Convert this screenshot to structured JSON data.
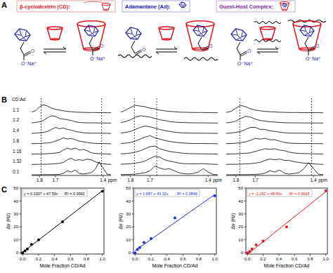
{
  "panels": [
    "A",
    "B",
    "C"
  ],
  "schematic": {
    "legend": [
      {
        "label": "β-cyclodextrin (CD):",
        "color": "#e3141c"
      },
      {
        "label": "Adamantane (Ad):",
        "color": "#1c1ca8"
      },
      {
        "label": "Guest-Host Complex:",
        "color": "#7a2a9a"
      }
    ],
    "carbonyl": "O",
    "counterion": "O⁻Na⁺"
  },
  "chart_data": [
    {
      "type": "line",
      "legend_title": "CD:Ad",
      "x": [
        1.85,
        1.825,
        1.8,
        1.775,
        1.75,
        1.725,
        1.7,
        1.675,
        1.65,
        1.625,
        1.6,
        1.575,
        1.55,
        1.525,
        1.5,
        1.475,
        1.45,
        1.425,
        1.4,
        1.375,
        1.35
      ],
      "xlim": [
        1.85,
        1.35
      ],
      "xticks": [
        1.8,
        1.7,
        1.4
      ],
      "x_label": "ppm",
      "ylim": [
        0,
        1
      ],
      "tick_labels": "x",
      "line_style": "solid",
      "reference_lines": [
        1.79,
        1.41
      ],
      "series": [
        {
          "name": "1:1",
          "color": "#000000",
          "values": [
            0.05,
            0.15,
            0.45,
            0.6,
            0.5,
            0.35,
            0.25,
            0.2,
            0.15,
            0.1,
            0.08,
            0.05,
            0.04,
            0.03,
            0.02,
            0.02,
            0.02,
            0.01,
            0.01,
            0.01,
            0
          ]
        },
        {
          "name": "1:2",
          "color": "#000000",
          "values": [
            0.02,
            0.05,
            0.1,
            0.2,
            0.4,
            0.55,
            0.5,
            0.35,
            0.3,
            0.25,
            0.2,
            0.1,
            0.05,
            0.03,
            0.02,
            0.02,
            0.02,
            0.01,
            0.01,
            0.01,
            0
          ]
        },
        {
          "name": "1:4",
          "color": "#000000",
          "values": [
            0.01,
            0.02,
            0.05,
            0.08,
            0.15,
            0.3,
            0.45,
            0.35,
            0.4,
            0.3,
            0.25,
            0.15,
            0.1,
            0.05,
            0.03,
            0.02,
            0.02,
            0.02,
            0.01,
            0.01,
            0
          ]
        },
        {
          "name": "1:8",
          "color": "#000000",
          "values": [
            0.01,
            0.01,
            0.02,
            0.04,
            0.06,
            0.1,
            0.2,
            0.3,
            0.45,
            0.35,
            0.4,
            0.3,
            0.2,
            0.15,
            0.1,
            0.05,
            0.03,
            0.02,
            0.02,
            0.01,
            0
          ]
        },
        {
          "name": "1:16",
          "color": "#000000",
          "values": [
            0,
            0.01,
            0.01,
            0.02,
            0.03,
            0.05,
            0.08,
            0.12,
            0.3,
            0.45,
            0.35,
            0.45,
            0.3,
            0.35,
            0.25,
            0.1,
            0.05,
            0.03,
            0.02,
            0.01,
            0
          ]
        },
        {
          "name": "1:32",
          "color": "#000000",
          "values": [
            0,
            0,
            0.01,
            0.01,
            0.02,
            0.03,
            0.05,
            0.08,
            0.15,
            0.35,
            0.45,
            0.3,
            0.35,
            0.3,
            0.4,
            0.35,
            0.2,
            0.1,
            0.05,
            0.02,
            0
          ]
        },
        {
          "name": "0:1",
          "color": "#000000",
          "values": [
            0,
            0,
            0,
            0.01,
            0.01,
            0.01,
            0.02,
            0.03,
            0.1,
            0.3,
            0.2,
            0.35,
            0.1,
            0.05,
            0.1,
            0.15,
            0.4,
            0.95,
            0.5,
            0.05,
            0
          ]
        }
      ]
    },
    {
      "type": "line",
      "x": [
        1.85,
        1.825,
        1.8,
        1.775,
        1.75,
        1.725,
        1.7,
        1.675,
        1.65,
        1.625,
        1.6,
        1.575,
        1.55,
        1.525,
        1.5,
        1.475,
        1.45,
        1.425,
        1.4,
        1.375,
        1.35
      ],
      "xlim": [
        1.85,
        1.35
      ],
      "xticks": [
        1.8,
        1.7,
        1.4
      ],
      "x_label": "ppm",
      "ylim": [
        0,
        1
      ],
      "tick_labels": "x",
      "line_style": "solid",
      "reference_lines": [
        1.78,
        1.665
      ],
      "series": [
        {
          "color": "#000000",
          "values": [
            0.05,
            0.2,
            0.4,
            0.55,
            0.5,
            0.45,
            0.35,
            0.3,
            0.2,
            0.15,
            0.1,
            0.08,
            0.05,
            0.04,
            0.03,
            0.02,
            0.02,
            0.02,
            0.01,
            0.01,
            0
          ]
        },
        {
          "color": "#000000",
          "values": [
            0.04,
            0.12,
            0.25,
            0.45,
            0.55,
            0.5,
            0.45,
            0.35,
            0.25,
            0.2,
            0.12,
            0.08,
            0.05,
            0.04,
            0.03,
            0.02,
            0.02,
            0.02,
            0.01,
            0.01,
            0
          ]
        },
        {
          "color": "#000000",
          "values": [
            0.03,
            0.08,
            0.15,
            0.3,
            0.45,
            0.55,
            0.5,
            0.4,
            0.3,
            0.22,
            0.15,
            0.1,
            0.06,
            0.04,
            0.03,
            0.02,
            0.02,
            0.02,
            0.01,
            0.01,
            0
          ]
        },
        {
          "color": "#000000",
          "values": [
            0.02,
            0.05,
            0.1,
            0.2,
            0.35,
            0.5,
            0.6,
            0.45,
            0.35,
            0.25,
            0.18,
            0.12,
            0.08,
            0.05,
            0.03,
            0.02,
            0.02,
            0.02,
            0.01,
            0.01,
            0
          ]
        },
        {
          "color": "#000000",
          "values": [
            0.02,
            0.04,
            0.08,
            0.15,
            0.25,
            0.4,
            0.55,
            0.6,
            0.4,
            0.3,
            0.2,
            0.15,
            0.1,
            0.06,
            0.04,
            0.03,
            0.02,
            0.02,
            0.01,
            0.01,
            0
          ]
        },
        {
          "color": "#000000",
          "values": [
            0.01,
            0.03,
            0.05,
            0.1,
            0.15,
            0.25,
            0.45,
            0.6,
            0.55,
            0.35,
            0.25,
            0.18,
            0.1,
            0.06,
            0.05,
            0.04,
            0.05,
            0.06,
            0.03,
            0.01,
            0
          ]
        },
        {
          "color": "#000000",
          "values": [
            0.01,
            0.02,
            0.03,
            0.05,
            0.1,
            0.15,
            0.3,
            0.65,
            0.5,
            0.4,
            0.45,
            0.3,
            0.15,
            0.08,
            0.06,
            0.1,
            0.2,
            0.45,
            0.2,
            0.03,
            0
          ]
        }
      ]
    },
    {
      "type": "line",
      "x": [
        1.85,
        1.825,
        1.8,
        1.775,
        1.75,
        1.725,
        1.7,
        1.675,
        1.65,
        1.625,
        1.6,
        1.575,
        1.55,
        1.525,
        1.5,
        1.475,
        1.45,
        1.425,
        1.4,
        1.375,
        1.35
      ],
      "xlim": [
        1.85,
        1.35
      ],
      "xticks": [
        1.8,
        1.7,
        1.4
      ],
      "x_label": "ppm",
      "ylim": [
        0,
        1
      ],
      "tick_labels": "x",
      "line_style": "solid",
      "reference_lines": [
        1.78,
        1.41
      ],
      "series": [
        {
          "color": "#000000",
          "values": [
            0.03,
            0.1,
            0.35,
            0.55,
            0.45,
            0.3,
            0.2,
            0.15,
            0.1,
            0.08,
            0.06,
            0.04,
            0.03,
            0.02,
            0.02,
            0.02,
            0.01,
            0.01,
            0.01,
            0.01,
            0
          ]
        },
        {
          "color": "#000000",
          "values": [
            0.02,
            0.06,
            0.15,
            0.35,
            0.5,
            0.45,
            0.3,
            0.2,
            0.15,
            0.1,
            0.08,
            0.05,
            0.03,
            0.02,
            0.02,
            0.02,
            0.01,
            0.01,
            0.01,
            0.01,
            0
          ]
        },
        {
          "color": "#000000",
          "values": [
            0.01,
            0.03,
            0.08,
            0.15,
            0.3,
            0.45,
            0.45,
            0.3,
            0.3,
            0.2,
            0.15,
            0.1,
            0.05,
            0.03,
            0.02,
            0.02,
            0.02,
            0.01,
            0.01,
            0.01,
            0
          ]
        },
        {
          "color": "#000000",
          "values": [
            0.01,
            0.02,
            0.04,
            0.08,
            0.15,
            0.25,
            0.4,
            0.35,
            0.4,
            0.3,
            0.3,
            0.2,
            0.1,
            0.05,
            0.03,
            0.02,
            0.02,
            0.02,
            0.01,
            0.01,
            0
          ]
        },
        {
          "color": "#000000",
          "values": [
            0,
            0.01,
            0.02,
            0.04,
            0.06,
            0.1,
            0.2,
            0.3,
            0.4,
            0.35,
            0.4,
            0.3,
            0.25,
            0.15,
            0.08,
            0.05,
            0.04,
            0.03,
            0.02,
            0.01,
            0
          ]
        },
        {
          "color": "#000000",
          "values": [
            0,
            0.01,
            0.01,
            0.02,
            0.04,
            0.06,
            0.1,
            0.15,
            0.3,
            0.4,
            0.35,
            0.4,
            0.3,
            0.3,
            0.2,
            0.15,
            0.1,
            0.08,
            0.04,
            0.02,
            0
          ]
        },
        {
          "color": "#000000",
          "values": [
            0,
            0,
            0.01,
            0.01,
            0.01,
            0.02,
            0.03,
            0.05,
            0.12,
            0.3,
            0.2,
            0.35,
            0.12,
            0.05,
            0.1,
            0.15,
            0.45,
            0.9,
            0.45,
            0.05,
            0
          ]
        }
      ]
    },
    {
      "type": "scatter",
      "x": [
        0,
        0.03,
        0.0588,
        0.1111,
        0.2,
        0.5,
        1.0
      ],
      "xlim": [
        -0.02,
        1.02
      ],
      "ylim": [
        -1,
        50
      ],
      "xticks": [
        {
          "value": 0,
          "label": "0.0"
        },
        0.2,
        0.4,
        0.6,
        0.8,
        {
          "value": 1,
          "label": "1.0"
        }
      ],
      "yticks": [
        0,
        10,
        20,
        30,
        40,
        50
      ],
      "x_label": "Mole Fraction CD/Ad",
      "y_label": "Δν (Hz)",
      "fit": {
        "intercept": 0.3307,
        "slope": 47.59
      },
      "fit_label": "y = 0.3307 + 47.59x",
      "r2_label": "R² = 0.9992",
      "series": [
        {
          "color": "#000000",
          "marker": "circle",
          "values": [
            0,
            1.5,
            3,
            6.5,
            10,
            24,
            47.5
          ]
        }
      ]
    },
    {
      "type": "scatter",
      "x": [
        0,
        0.03,
        0.0588,
        0.1111,
        0.2,
        0.5,
        1.0
      ],
      "xlim": [
        -0.02,
        1.02
      ],
      "ylim": [
        -1,
        50
      ],
      "xticks": [
        {
          "value": 0,
          "label": "0.0"
        },
        0.2,
        0.4,
        0.6,
        0.8,
        {
          "value": 1,
          "label": "1.0"
        }
      ],
      "yticks": [
        0,
        10,
        20,
        30,
        40,
        50
      ],
      "x_label": "Mole Fraction CD/Ad",
      "y_label": "Δν (Hz)",
      "fit": {
        "intercept": 1.687,
        "slope": 43.32
      },
      "fit_label": "y = 1.687 + 43.32x",
      "r2_label": "R² = 0.9849",
      "series": [
        {
          "color": "#1c2fd0",
          "marker": "circle",
          "values": [
            0,
            2.5,
            4,
            8,
            11,
            27,
            44
          ]
        }
      ]
    },
    {
      "type": "scatter",
      "x": [
        0,
        0.03,
        0.0588,
        0.1111,
        0.2,
        0.5,
        1.0
      ],
      "xlim": [
        -0.02,
        1.02
      ],
      "ylim": [
        -1,
        50
      ],
      "xticks": [
        {
          "value": 0,
          "label": "0.0"
        },
        0.2,
        0.4,
        0.6,
        0.8,
        {
          "value": 1,
          "label": "1.0"
        }
      ],
      "yticks": [
        0,
        10,
        20,
        30,
        40,
        50
      ],
      "x_label": "Mole Fraction CD/Ad",
      "y_label": "Δν (Hz)",
      "fit": {
        "intercept": -1.252,
        "slope": 48.46
      },
      "fit_label": "y = -1.252 + 48.46x",
      "r2_label": "R² = 0.9915",
      "series": [
        {
          "color": "#e3141c",
          "marker": "circle",
          "values": [
            0,
            1,
            3,
            6,
            9,
            20,
            48
          ]
        }
      ]
    }
  ]
}
